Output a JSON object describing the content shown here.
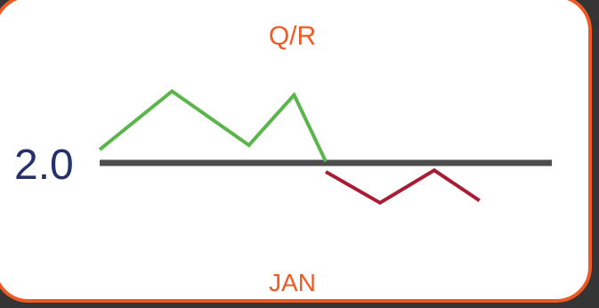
{
  "chart_data": {
    "type": "line",
    "title": "Q/R",
    "xlabel": "JAN",
    "baseline": {
      "value": 2.0,
      "label": "2.0",
      "color": "#4d4d4d"
    },
    "ylim": [
      1.0,
      3.0
    ],
    "xlim": [
      0,
      10
    ],
    "series": [
      {
        "color": "#5ab54b",
        "x": [
          0,
          1.6,
          3.3,
          4.3,
          5.0
        ],
        "values": [
          2.18,
          2.97,
          2.24,
          2.92,
          2.02
        ]
      },
      {
        "color": "#a81c35",
        "x": [
          5.0,
          6.2,
          7.4,
          8.4
        ],
        "values": [
          1.88,
          1.46,
          1.9,
          1.49
        ]
      }
    ],
    "grid": false,
    "legend": "none"
  },
  "colors": {
    "accent": "#f05a22",
    "label_blue": "#26306a",
    "frame_background": "#353535"
  }
}
